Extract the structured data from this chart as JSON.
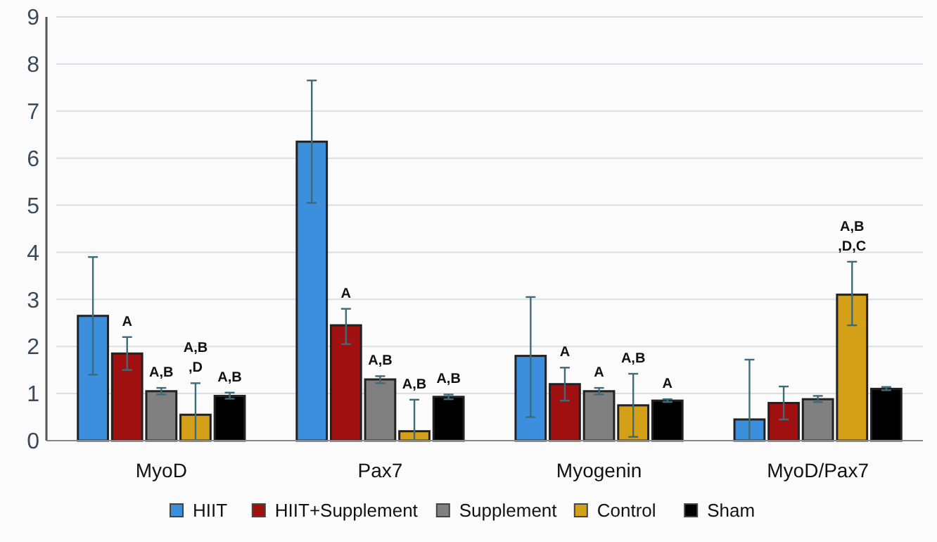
{
  "chart_data": {
    "type": "bar",
    "categories": [
      "MyoD",
      "Pax7",
      "Myogenin",
      "MyoD/Pax7"
    ],
    "series": [
      {
        "name": "HIIT",
        "color": "#3b8fdd",
        "values": [
          2.65,
          6.35,
          1.8,
          0.45
        ],
        "errors": [
          [
            1.4,
            3.9
          ],
          [
            5.05,
            7.65
          ],
          [
            0.5,
            3.05
          ],
          [
            0,
            1.72
          ]
        ],
        "value_labels": [
          null,
          null,
          null,
          null
        ]
      },
      {
        "name": "HIIT+Supplement",
        "color": "#a01010",
        "values": [
          1.85,
          2.45,
          1.2,
          0.8
        ],
        "errors": [
          [
            1.5,
            2.2
          ],
          [
            2.05,
            2.8
          ],
          [
            0.85,
            1.55
          ],
          [
            0.45,
            1.15
          ]
        ],
        "value_labels": [
          "A",
          "A",
          "A",
          null
        ]
      },
      {
        "name": "Supplement",
        "color": "#808080",
        "values": [
          1.05,
          1.3,
          1.05,
          0.88
        ],
        "errors": [
          [
            0.98,
            1.12
          ],
          [
            1.22,
            1.37
          ],
          [
            0.98,
            1.12
          ],
          [
            0.82,
            0.95
          ]
        ],
        "value_labels": [
          "A,B",
          "A,B",
          "A",
          null
        ]
      },
      {
        "name": "Control",
        "color": "#d4a017",
        "values": [
          0.55,
          0.2,
          0.75,
          3.1
        ],
        "errors": [
          [
            0,
            1.22
          ],
          [
            0,
            0.87
          ],
          [
            0.08,
            1.42
          ],
          [
            2.45,
            3.8
          ]
        ],
        "value_labels": [
          "A,B\n,D",
          "A,B",
          "A,B",
          "A,B\n,D,C"
        ]
      },
      {
        "name": "Sham",
        "color": "#000000",
        "values": [
          0.95,
          0.93,
          0.85,
          1.1
        ],
        "errors": [
          [
            0.89,
            1.02
          ],
          [
            0.88,
            0.98
          ],
          [
            0.82,
            0.88
          ],
          [
            1.07,
            1.14
          ]
        ],
        "value_labels": [
          "A,B",
          "A,B",
          "A",
          null
        ]
      }
    ],
    "ylim": [
      0,
      9
    ],
    "yticks": [
      0,
      1,
      2,
      3,
      4,
      5,
      6,
      7,
      8,
      9
    ],
    "grid": "y",
    "legend": "bottom"
  }
}
